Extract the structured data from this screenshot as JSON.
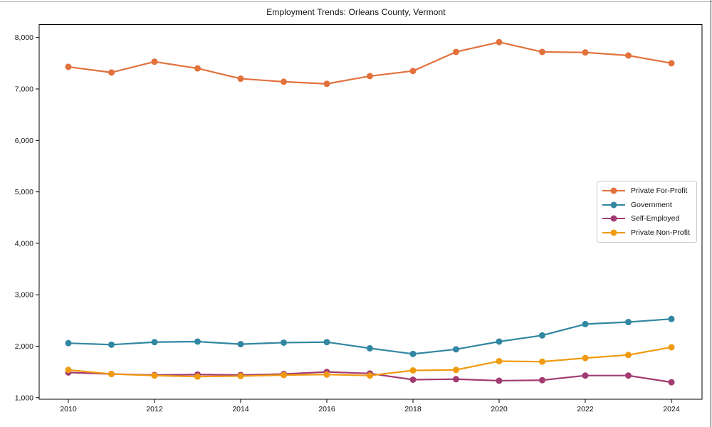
{
  "chart_data": {
    "type": "line",
    "title": "Employment Trends: Orleans County, Vermont",
    "xlabel": "",
    "ylabel": "",
    "x": [
      2010,
      2011,
      2012,
      2013,
      2014,
      2015,
      2016,
      2017,
      2018,
      2019,
      2020,
      2021,
      2022,
      2023,
      2024
    ],
    "x_tick_labels": [
      "2010",
      "2012",
      "2014",
      "2016",
      "2018",
      "2020",
      "2022",
      "2024"
    ],
    "x_tick_values": [
      2010,
      2012,
      2014,
      2016,
      2018,
      2020,
      2022,
      2024
    ],
    "y_tick_labels": [
      "1,000",
      "2,000",
      "3,000",
      "4,000",
      "5,000",
      "6,000",
      "7,000",
      "8,000"
    ],
    "y_tick_values": [
      1000,
      2000,
      3000,
      4000,
      5000,
      6000,
      7000,
      8000
    ],
    "xlim": [
      2009.3,
      2024.7
    ],
    "ylim": [
      950,
      8260
    ],
    "grid": false,
    "legend_position": "center right",
    "series": [
      {
        "name": "Private For-Profit",
        "color": "#E2713C",
        "values": [
          7430,
          7320,
          7530,
          7400,
          7200,
          7140,
          7100,
          7250,
          7350,
          7720,
          7910,
          7720,
          7710,
          7650,
          7500
        ]
      },
      {
        "name": "Government",
        "color": "#3187A2",
        "values": [
          2060,
          2030,
          2080,
          2090,
          2040,
          2070,
          2080,
          1960,
          1850,
          1940,
          2090,
          2210,
          2430,
          2470,
          2530
        ]
      },
      {
        "name": "Self-Employed",
        "color": "#A23B72",
        "values": [
          1490,
          1460,
          1440,
          1450,
          1440,
          1460,
          1500,
          1470,
          1350,
          1360,
          1330,
          1340,
          1430,
          1430,
          1300
        ]
      },
      {
        "name": "Private Non-Profit",
        "color": "#F09A10",
        "values": [
          1540,
          1460,
          1430,
          1410,
          1420,
          1440,
          1450,
          1430,
          1530,
          1540,
          1710,
          1700,
          1770,
          1830,
          1980
        ]
      }
    ]
  }
}
